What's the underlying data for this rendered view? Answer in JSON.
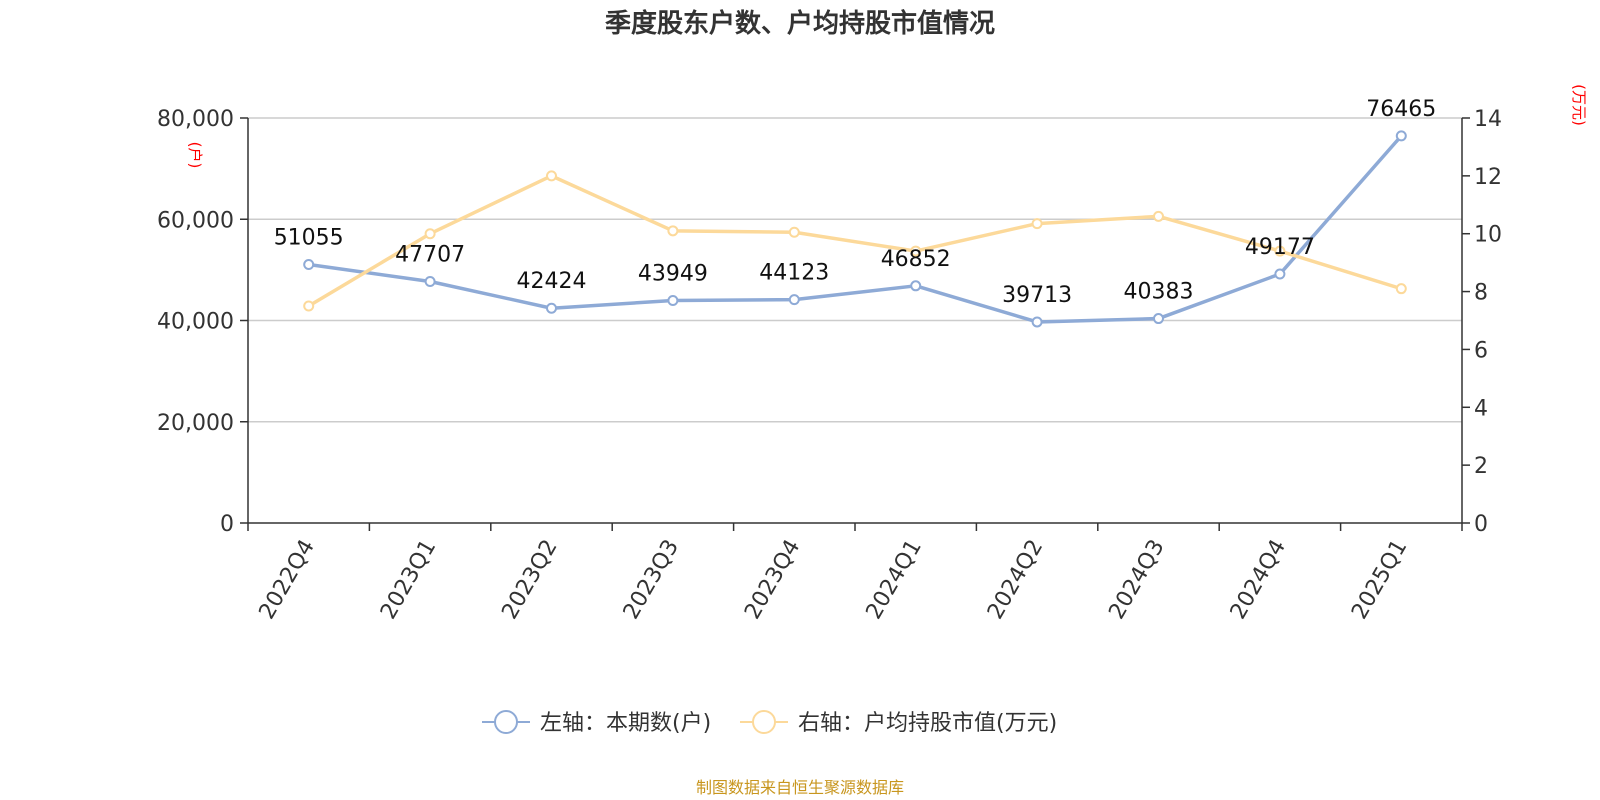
{
  "chart_data": {
    "type": "line",
    "title": "季度股东户数、户均持股市值情况",
    "categories": [
      "2022Q4",
      "2023Q1",
      "2023Q2",
      "2023Q3",
      "2023Q4",
      "2024Q1",
      "2024Q2",
      "2024Q3",
      "2024Q4",
      "2025Q1"
    ],
    "series": [
      {
        "name": "左轴：本期数(户)",
        "axis": "left",
        "color": "#8eaad6",
        "values": [
          51055,
          47707,
          42424,
          43949,
          44123,
          46852,
          39713,
          40383,
          49177,
          76465
        ],
        "data_labels": [
          "51055",
          "47707",
          "42424",
          "43949",
          "44123",
          "46852",
          "39713",
          "40383",
          "49177",
          "76465"
        ]
      },
      {
        "name": "右轴：户均持股市值(万元)",
        "axis": "right",
        "color": "#fcd99a",
        "values": [
          7.5,
          10.0,
          12.0,
          10.1,
          10.05,
          9.4,
          10.35,
          10.6,
          9.4,
          8.1
        ]
      }
    ],
    "y_left": {
      "unit": "(户)",
      "range": [
        0,
        80000
      ],
      "ticks": [
        "0",
        "20,000",
        "40,000",
        "60,000",
        "80,000"
      ],
      "tick_values": [
        0,
        20000,
        40000,
        60000,
        80000
      ]
    },
    "y_right": {
      "unit": "(万元)",
      "range": [
        0,
        14
      ],
      "ticks": [
        "0",
        "2",
        "4",
        "6",
        "8",
        "10",
        "12",
        "14"
      ],
      "tick_values": [
        0,
        2,
        4,
        6,
        8,
        10,
        12,
        14
      ]
    },
    "grid": true,
    "legend_position": "bottom-center",
    "source": "制图数据来自恒生聚源数据库"
  }
}
